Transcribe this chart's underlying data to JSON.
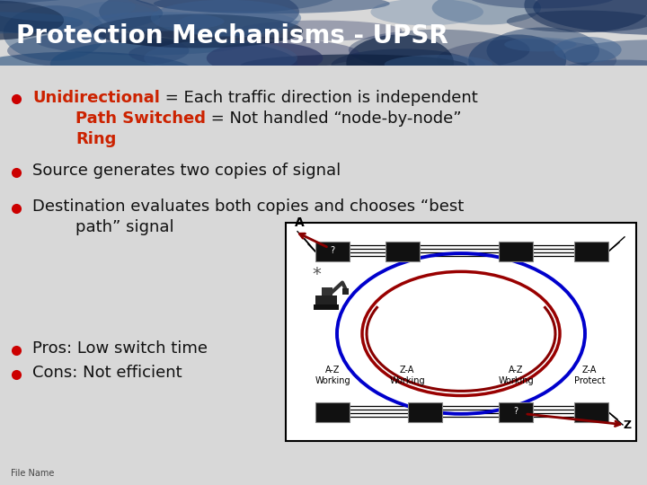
{
  "title": "Protection Mechanisms - UPSR",
  "title_fontsize": 20,
  "title_color": "#ffffff",
  "bg_color": "#d8d8d8",
  "content_bg": "#e0e0e0",
  "bullet_color": "#cc0000",
  "bullet_points": [
    {
      "parts": [
        {
          "text": "Unidirectional",
          "color": "#cc2200",
          "bold": true
        },
        {
          "text": " = Each traffic direction is independent",
          "color": "#111111",
          "bold": false
        }
      ],
      "has_bullet": true,
      "indent": 0
    },
    {
      "parts": [
        {
          "text": "Path Switched",
          "color": "#cc2200",
          "bold": true
        },
        {
          "text": " = Not handled “node-by-node”",
          "color": "#111111",
          "bold": false
        }
      ],
      "has_bullet": false,
      "indent": 1
    },
    {
      "parts": [
        {
          "text": "Ring",
          "color": "#cc2200",
          "bold": true
        }
      ],
      "has_bullet": false,
      "indent": 1
    },
    {
      "parts": [
        {
          "text": "Source generates two copies of signal",
          "color": "#111111",
          "bold": false
        }
      ],
      "has_bullet": true,
      "indent": 0
    },
    {
      "parts": [
        {
          "text": "Destination evaluates both copies and chooses “best",
          "color": "#111111",
          "bold": false
        }
      ],
      "has_bullet": true,
      "indent": 0
    },
    {
      "parts": [
        {
          "text": "path” signal",
          "color": "#111111",
          "bold": false
        }
      ],
      "has_bullet": false,
      "indent": 1
    },
    {
      "parts": [
        {
          "text": "Pros: Low switch time",
          "color": "#111111",
          "bold": false
        }
      ],
      "has_bullet": true,
      "indent": 0
    },
    {
      "parts": [
        {
          "text": "Cons: Not efficient",
          "color": "#111111",
          "bold": false
        }
      ],
      "has_bullet": true,
      "indent": 0
    }
  ],
  "footer_text": "File Name",
  "text_fontsize": 13,
  "footer_fontsize": 7
}
